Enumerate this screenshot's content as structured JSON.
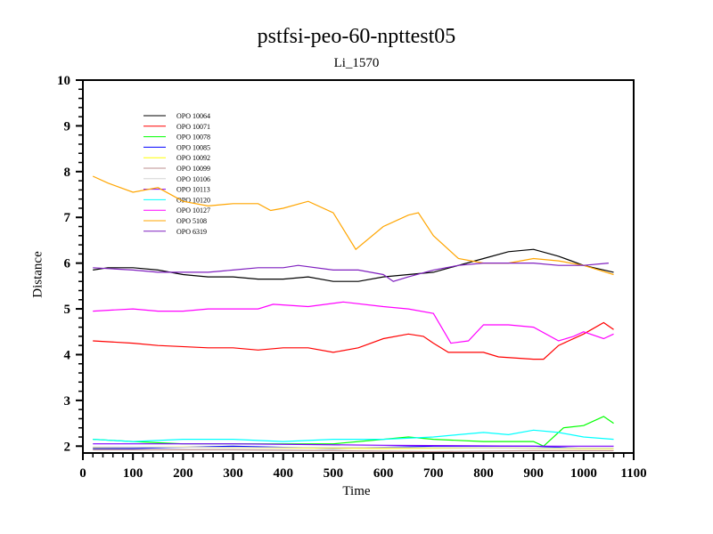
{
  "chart_data": {
    "type": "line",
    "title": "pstfsi-peo-60-npttest05",
    "subtitle": "Li_1570",
    "xlabel": "Time",
    "ylabel": "Distance",
    "xlim": [
      0,
      1100
    ],
    "ylim": [
      1.85,
      10
    ],
    "xticks": [
      0,
      100,
      200,
      300,
      400,
      500,
      600,
      700,
      800,
      900,
      1000,
      1100
    ],
    "yticks": [
      2,
      3,
      4,
      5,
      6,
      7,
      8,
      9,
      10
    ],
    "legend_position": "top-left",
    "series": [
      {
        "name": "OPO 10064",
        "color": "#000000",
        "x": [
          20,
          50,
          100,
          150,
          200,
          250,
          300,
          350,
          400,
          450,
          500,
          550,
          600,
          650,
          700,
          750,
          800,
          850,
          900,
          950,
          1000,
          1060
        ],
        "y": [
          5.85,
          5.9,
          5.9,
          5.85,
          5.75,
          5.7,
          5.7,
          5.65,
          5.65,
          5.7,
          5.6,
          5.6,
          5.7,
          5.75,
          5.8,
          5.95,
          6.1,
          6.25,
          6.3,
          6.15,
          5.95,
          5.8
        ]
      },
      {
        "name": "OPO 10071",
        "color": "#ff0000",
        "x": [
          20,
          100,
          150,
          250,
          300,
          350,
          400,
          450,
          500,
          550,
          600,
          650,
          680,
          700,
          730,
          760,
          800,
          830,
          900,
          920,
          950,
          1000,
          1040,
          1060
        ],
        "y": [
          4.3,
          4.25,
          4.2,
          4.15,
          4.15,
          4.1,
          4.15,
          4.15,
          4.05,
          4.15,
          4.35,
          4.45,
          4.4,
          4.25,
          4.05,
          4.05,
          4.05,
          3.95,
          3.9,
          3.9,
          4.2,
          4.45,
          4.7,
          4.55
        ]
      },
      {
        "name": "OPO 10078",
        "color": "#00ff00",
        "x": [
          20,
          100,
          200,
          300,
          400,
          500,
          600,
          650,
          700,
          800,
          900,
          920,
          960,
          1000,
          1040,
          1060
        ],
        "y": [
          2.15,
          2.1,
          2.05,
          2.05,
          2.05,
          2.05,
          2.15,
          2.2,
          2.15,
          2.1,
          2.1,
          2.0,
          2.4,
          2.45,
          2.65,
          2.5
        ]
      },
      {
        "name": "OPO 10085",
        "color": "#0000ff",
        "x": [
          20,
          100,
          300,
          500,
          700,
          800,
          900,
          1000,
          1030
        ],
        "y": [
          1.95,
          1.95,
          2.0,
          1.95,
          2.0,
          2.0,
          2.0,
          1.95,
          1.95
        ]
      },
      {
        "name": "OPO 10092",
        "color": "#ffff00",
        "x": [
          20,
          200,
          400,
          600,
          800,
          1000,
          1060
        ],
        "y": [
          1.97,
          1.98,
          1.96,
          1.95,
          1.96,
          1.95,
          1.95
        ]
      },
      {
        "name": "OPO 10099",
        "color": "#bc8f8f",
        "x": [
          20,
          300,
          500,
          700,
          900,
          1060
        ],
        "y": [
          1.92,
          1.92,
          1.9,
          1.88,
          1.9,
          1.9
        ]
      },
      {
        "name": "OPO 10106",
        "color": "#d3d3d3",
        "x": [
          20,
          300,
          600,
          900,
          1060
        ],
        "y": [
          1.98,
          1.97,
          1.97,
          1.96,
          1.96
        ]
      },
      {
        "name": "OPO 10113",
        "color": "#7f00ff",
        "x": [
          20,
          300,
          600,
          900,
          1060
        ],
        "y": [
          2.05,
          2.05,
          2.02,
          2.0,
          2.0
        ]
      },
      {
        "name": "OPO 10120",
        "color": "#00ffff",
        "x": [
          20,
          100,
          200,
          300,
          400,
          500,
          600,
          700,
          750,
          800,
          850,
          900,
          950,
          1000,
          1060
        ],
        "y": [
          2.15,
          2.1,
          2.15,
          2.15,
          2.1,
          2.15,
          2.15,
          2.2,
          2.25,
          2.3,
          2.25,
          2.35,
          2.3,
          2.2,
          2.15
        ]
      },
      {
        "name": "OPO 10127",
        "color": "#ff00ff",
        "x": [
          20,
          100,
          150,
          200,
          250,
          350,
          380,
          450,
          520,
          600,
          650,
          700,
          735,
          770,
          800,
          850,
          900,
          950,
          980,
          1000,
          1040,
          1060
        ],
        "y": [
          4.95,
          5.0,
          4.95,
          4.95,
          5.0,
          5.0,
          5.1,
          5.05,
          5.15,
          5.05,
          5.0,
          4.9,
          4.25,
          4.3,
          4.65,
          4.65,
          4.6,
          4.3,
          4.4,
          4.5,
          4.35,
          4.45
        ]
      },
      {
        "name": "OPO 5108",
        "color": "#ffa500",
        "x": [
          20,
          50,
          100,
          150,
          200,
          250,
          300,
          350,
          375,
          400,
          450,
          500,
          545,
          600,
          650,
          670,
          700,
          750,
          800,
          850,
          900,
          950,
          1000,
          1060
        ],
        "y": [
          7.9,
          7.75,
          7.55,
          7.65,
          7.35,
          7.25,
          7.3,
          7.3,
          7.15,
          7.2,
          7.35,
          7.1,
          6.3,
          6.8,
          7.05,
          7.1,
          6.6,
          6.1,
          6.0,
          6.0,
          6.1,
          6.05,
          5.95,
          5.75
        ]
      },
      {
        "name": "OPO 6319",
        "color": "#7f1fbf",
        "x": [
          20,
          100,
          150,
          250,
          300,
          350,
          400,
          430,
          500,
          550,
          600,
          620,
          650,
          700,
          750,
          800,
          900,
          950,
          1000,
          1050
        ],
        "y": [
          5.9,
          5.85,
          5.8,
          5.8,
          5.85,
          5.9,
          5.9,
          5.95,
          5.85,
          5.85,
          5.75,
          5.6,
          5.7,
          5.85,
          5.95,
          6.0,
          6.0,
          5.95,
          5.95,
          6.0
        ]
      }
    ]
  }
}
